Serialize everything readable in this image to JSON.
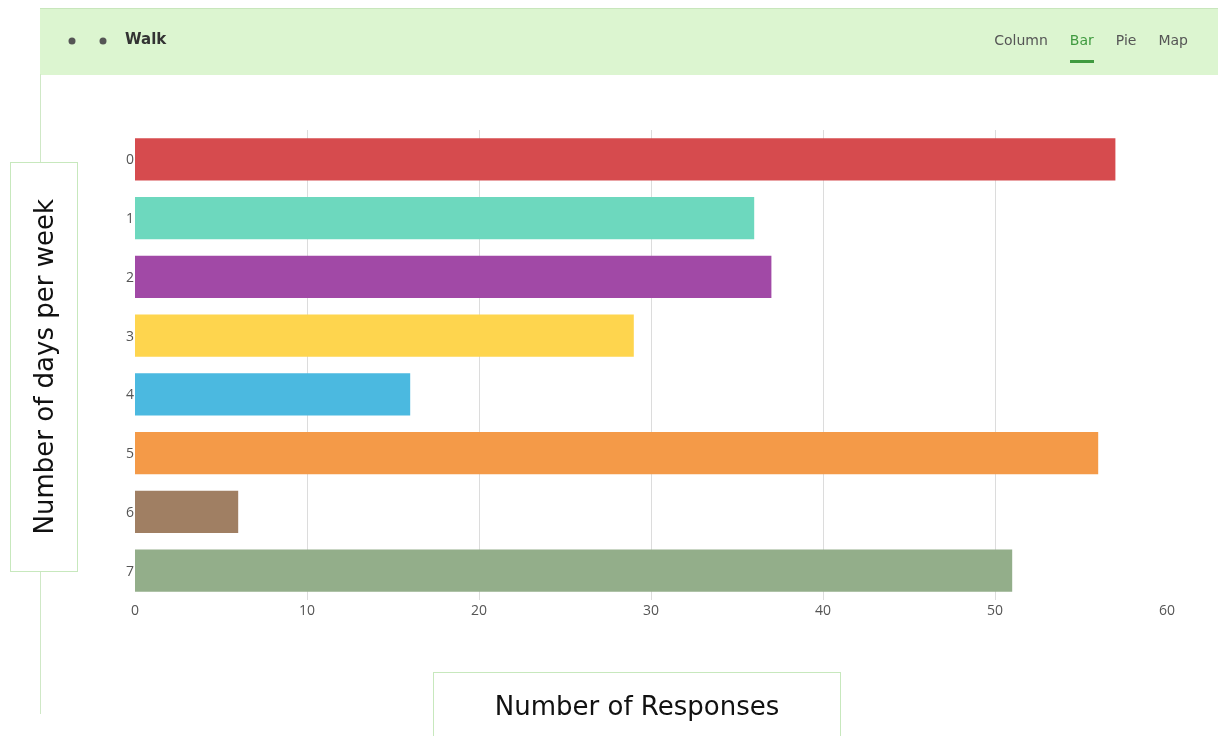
{
  "chart_data": {
    "type": "bar",
    "orientation": "horizontal",
    "title": "Walk",
    "annotations": [
      "Column",
      "Bar",
      "Pie",
      "Map"
    ],
    "categories": [
      "0",
      "1",
      "2",
      "3",
      "4",
      "5",
      "6",
      "7"
    ],
    "values": [
      57,
      36,
      37,
      29,
      16,
      56,
      6,
      51
    ],
    "colors": [
      "#d64b4e",
      "#6dd8be",
      "#a149a6",
      "#fed54e",
      "#4bb9e0",
      "#f49a48",
      "#a07f63",
      "#93ae8a"
    ],
    "xlim": [
      0,
      60
    ],
    "xticks": [
      0,
      10,
      20,
      30,
      40,
      50,
      60
    ],
    "xlabel": "Number of Responses",
    "ylabel": "Number of days per week",
    "grid": "x"
  }
}
